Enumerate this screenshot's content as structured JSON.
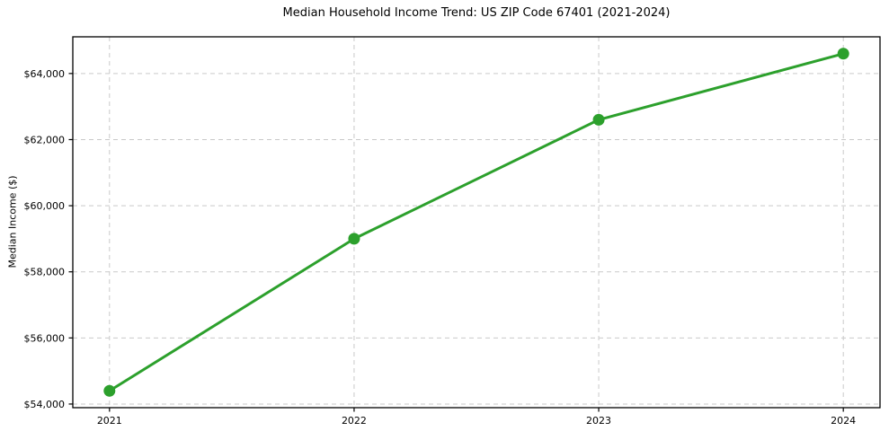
{
  "chart_data": {
    "type": "line",
    "title": "Median Household Income Trend: US ZIP Code 67401 (2021-2024)",
    "xlabel": "",
    "ylabel": "Median Income ($)",
    "x": [
      2021,
      2022,
      2023,
      2024
    ],
    "x_tick_labels": [
      "2021",
      "2022",
      "2023",
      "2024"
    ],
    "series": [
      {
        "name": "Median Household Income",
        "values": [
          54400,
          59000,
          62600,
          64600
        ]
      }
    ],
    "y_ticks": [
      54000,
      56000,
      58000,
      60000,
      62000,
      64000
    ],
    "y_tick_labels": [
      "$54,000",
      "$56,000",
      "$58,000",
      "$60,000",
      "$62,000",
      "$64,000"
    ],
    "xlim": [
      2020.85,
      2024.15
    ],
    "ylim": [
      53890,
      65110
    ],
    "grid": true,
    "grid_style": "dashed",
    "legend": "none",
    "colors": {
      "line": "#2ca02c",
      "marker": "#2ca02c",
      "grid": "#c9c9c9",
      "axis": "#000000",
      "text": "#000000",
      "background": "#ffffff"
    }
  }
}
